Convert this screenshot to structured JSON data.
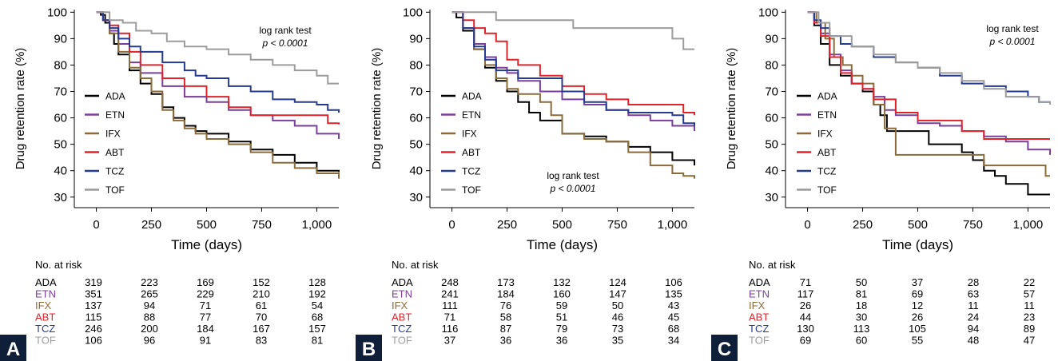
{
  "colors": {
    "ADA": "#000000",
    "ETN": "#7a3e9d",
    "IFX": "#8b6b3a",
    "ABT": "#e0232b",
    "TCZ": "#263b8f",
    "TOF": "#9c9c9c",
    "badge_bg": "#0f1f3a",
    "badge_fg": "#ffffff"
  },
  "chart_data": [
    {
      "type": "line",
      "panel": "A",
      "ylabel": "Drug retention rate (%)",
      "xlabel": "Time (days)",
      "xlim": [
        -100,
        1100
      ],
      "ylim": [
        26,
        101
      ],
      "x_ticks": [
        0,
        250,
        500,
        750,
        1000
      ],
      "x_tick_labels": [
        "0",
        "250",
        "500",
        "750",
        "1,000"
      ],
      "y_ticks": [
        30,
        40,
        50,
        60,
        70,
        80,
        90,
        100
      ],
      "y_tick_labels": [
        "30",
        "40",
        "50",
        "60",
        "70",
        "80",
        "90",
        "100"
      ],
      "annotation": {
        "line1": "log rank test",
        "line2": "p < 0.0001"
      },
      "legend": [
        "ADA",
        "ETN",
        "IFX",
        "ABT",
        "TCZ",
        "TOF"
      ],
      "series": [
        {
          "name": "ADA",
          "x": [
            0,
            20,
            40,
            60,
            80,
            100,
            150,
            200,
            250,
            300,
            350,
            400,
            450,
            500,
            600,
            700,
            800,
            900,
            1000,
            1100
          ],
          "y": [
            100,
            99,
            96,
            92,
            88,
            84,
            78,
            73,
            69,
            64,
            60,
            57,
            55,
            54,
            51,
            48,
            46,
            43,
            40,
            39.5
          ]
        },
        {
          "name": "ETN",
          "x": [
            0,
            30,
            60,
            100,
            150,
            200,
            300,
            400,
            500,
            600,
            700,
            800,
            900,
            1000,
            1100
          ],
          "y": [
            100,
            97,
            93,
            88,
            81,
            77,
            72,
            68,
            66,
            63,
            61,
            59,
            57,
            54,
            52
          ]
        },
        {
          "name": "IFX",
          "x": [
            0,
            30,
            60,
            100,
            150,
            200,
            250,
            300,
            350,
            400,
            450,
            500,
            600,
            700,
            800,
            900,
            1000,
            1100
          ],
          "y": [
            100,
            97,
            92,
            85,
            79,
            75,
            70,
            63,
            59,
            56,
            54,
            52,
            50,
            47,
            43,
            41,
            39,
            37
          ]
        },
        {
          "name": "ABT",
          "x": [
            0,
            30,
            60,
            100,
            150,
            200,
            300,
            400,
            500,
            600,
            700,
            800,
            1000,
            1050,
            1100
          ],
          "y": [
            100,
            97,
            95,
            92,
            85,
            80,
            75,
            72,
            68,
            64,
            61,
            61,
            61,
            58,
            57.5
          ]
        },
        {
          "name": "TCZ",
          "x": [
            0,
            30,
            60,
            100,
            150,
            200,
            300,
            350,
            400,
            450,
            500,
            600,
            700,
            800,
            900,
            1000,
            1050,
            1100
          ],
          "y": [
            100,
            97,
            94,
            90,
            87,
            85,
            81,
            81,
            78,
            76,
            75,
            72,
            70,
            67,
            66,
            65,
            63,
            62
          ]
        },
        {
          "name": "TOF",
          "x": [
            0,
            60,
            120,
            180,
            250,
            320,
            400,
            500,
            600,
            700,
            800,
            900,
            1000,
            1050,
            1100
          ],
          "y": [
            100,
            97,
            96,
            93,
            92,
            89,
            87,
            86,
            84,
            82,
            80,
            78,
            76,
            73,
            73
          ]
        }
      ],
      "risk_table": {
        "title": "No. at risk",
        "rows": [
          {
            "name": "ADA",
            "values": [
              "319",
              "223",
              "169",
              "152",
              "128"
            ]
          },
          {
            "name": "ETN",
            "values": [
              "351",
              "265",
              "229",
              "210",
              "192"
            ]
          },
          {
            "name": "IFX",
            "values": [
              "137",
              "94",
              "71",
              "61",
              "54"
            ]
          },
          {
            "name": "ABT",
            "values": [
              "115",
              "88",
              "77",
              "70",
              "68"
            ]
          },
          {
            "name": "TCZ",
            "values": [
              "246",
              "200",
              "184",
              "167",
              "157"
            ]
          },
          {
            "name": "TOF",
            "values": [
              "106",
              "96",
              "91",
              "83",
              "81"
            ]
          }
        ]
      }
    },
    {
      "type": "line",
      "panel": "B",
      "ylabel": "Drug retention rate (%)",
      "xlabel": "Time (days)",
      "xlim": [
        -100,
        1100
      ],
      "ylim": [
        26,
        101
      ],
      "x_ticks": [
        0,
        250,
        500,
        750,
        1000
      ],
      "x_tick_labels": [
        "0",
        "250",
        "500",
        "750",
        "1,000"
      ],
      "y_ticks": [
        30,
        40,
        50,
        60,
        70,
        80,
        90,
        100
      ],
      "y_tick_labels": [
        "30",
        "40",
        "50",
        "60",
        "70",
        "80",
        "90",
        "100"
      ],
      "annotation": {
        "line1": "log rank test",
        "line2": "p < 0.0001"
      },
      "legend": [
        "ADA",
        "ETN",
        "IFX",
        "ABT",
        "TCZ",
        "TOF"
      ],
      "series": [
        {
          "name": "ADA",
          "x": [
            0,
            20,
            50,
            100,
            150,
            200,
            250,
            300,
            350,
            400,
            500,
            600,
            700,
            800,
            900,
            1000,
            1100
          ],
          "y": [
            100,
            98,
            93,
            86,
            79,
            74,
            70,
            66,
            62,
            59,
            54,
            53,
            51,
            49,
            47,
            44,
            42
          ]
        },
        {
          "name": "ETN",
          "x": [
            0,
            50,
            100,
            150,
            200,
            250,
            300,
            400,
            500,
            600,
            700,
            800,
            900,
            1000,
            1100
          ],
          "y": [
            100,
            94,
            88,
            83,
            79,
            77,
            74,
            70,
            67,
            65,
            63,
            61,
            59,
            57,
            55
          ]
        },
        {
          "name": "IFX",
          "x": [
            0,
            50,
            100,
            150,
            200,
            250,
            300,
            400,
            450,
            500,
            600,
            700,
            800,
            900,
            1000,
            1050,
            1100
          ],
          "y": [
            100,
            94,
            86,
            80,
            75,
            71,
            69,
            66,
            61,
            54,
            52,
            51,
            47,
            42,
            39,
            38,
            37
          ]
        },
        {
          "name": "ABT",
          "x": [
            0,
            50,
            100,
            150,
            200,
            250,
            300,
            400,
            500,
            600,
            700,
            800,
            900,
            1000,
            1050,
            1100
          ],
          "y": [
            100,
            97,
            94,
            92,
            89,
            82,
            80,
            76,
            72,
            69,
            67,
            65,
            65,
            65,
            62,
            61
          ]
        },
        {
          "name": "TCZ",
          "x": [
            0,
            50,
            100,
            150,
            200,
            300,
            400,
            500,
            600,
            700,
            800,
            900,
            1000,
            1050,
            1100
          ],
          "y": [
            100,
            94,
            87,
            82,
            78,
            75,
            75,
            70,
            66,
            63,
            62,
            62,
            61,
            58,
            57
          ]
        },
        {
          "name": "TOF",
          "x": [
            0,
            200,
            400,
            500,
            550,
            700,
            800,
            900,
            1000,
            1050,
            1100
          ],
          "y": [
            100,
            97,
            97,
            97,
            94,
            94,
            94,
            94,
            90,
            86,
            86
          ]
        }
      ],
      "risk_table": {
        "title": "No. at risk",
        "rows": [
          {
            "name": "ADA",
            "values": [
              "248",
              "173",
              "132",
              "124",
              "106"
            ]
          },
          {
            "name": "ETN",
            "values": [
              "241",
              "184",
              "160",
              "147",
              "135"
            ]
          },
          {
            "name": "IFX",
            "values": [
              "111",
              "76",
              "59",
              "50",
              "43"
            ]
          },
          {
            "name": "ABT",
            "values": [
              "71",
              "58",
              "51",
              "46",
              "45"
            ]
          },
          {
            "name": "TCZ",
            "values": [
              "116",
              "87",
              "79",
              "73",
              "68"
            ]
          },
          {
            "name": "TOF",
            "values": [
              "37",
              "36",
              "36",
              "35",
              "34"
            ]
          }
        ]
      }
    },
    {
      "type": "line",
      "panel": "C",
      "ylabel": "Drug retention rate (%)",
      "xlabel": "Time (days)",
      "xlim": [
        -100,
        1100
      ],
      "ylim": [
        26,
        101
      ],
      "x_ticks": [
        0,
        250,
        500,
        750,
        1000
      ],
      "x_tick_labels": [
        "0",
        "250",
        "500",
        "750",
        "1,000"
      ],
      "y_ticks": [
        30,
        40,
        50,
        60,
        70,
        80,
        90,
        100
      ],
      "y_tick_labels": [
        "30",
        "40",
        "50",
        "60",
        "70",
        "80",
        "90",
        "100"
      ],
      "annotation": {
        "line1": "log rank test",
        "line2": "p < 0.0001"
      },
      "legend": [
        "ADA",
        "ETN",
        "IFX",
        "ABT",
        "TCZ",
        "TOF"
      ],
      "series": [
        {
          "name": "ADA",
          "x": [
            0,
            30,
            60,
            100,
            150,
            200,
            250,
            300,
            330,
            360,
            450,
            550,
            700,
            750,
            800,
            850,
            900,
            1000,
            1100
          ],
          "y": [
            100,
            95,
            88,
            80,
            76,
            73,
            70,
            65,
            61,
            55,
            55,
            50,
            47,
            44,
            40,
            38,
            35,
            31,
            31
          ]
        },
        {
          "name": "ETN",
          "x": [
            0,
            30,
            60,
            100,
            150,
            200,
            250,
            300,
            350,
            400,
            500,
            600,
            700,
            800,
            900,
            1000,
            1100
          ],
          "y": [
            100,
            96,
            92,
            84,
            78,
            73,
            71,
            68,
            63,
            61,
            58,
            57,
            55,
            53,
            51,
            48,
            46
          ]
        },
        {
          "name": "IFX",
          "x": [
            0,
            40,
            80,
            120,
            160,
            200,
            250,
            300,
            350,
            400,
            500,
            600,
            700,
            800,
            1000,
            1080,
            1100
          ],
          "y": [
            100,
            96,
            90,
            83,
            80,
            76,
            73,
            65,
            56,
            46,
            46,
            46,
            46,
            42,
            42,
            38,
            38
          ]
        },
        {
          "name": "ABT",
          "x": [
            0,
            30,
            60,
            100,
            150,
            200,
            250,
            300,
            400,
            500,
            600,
            700,
            800,
            900,
            1000,
            1100
          ],
          "y": [
            100,
            96,
            91,
            83,
            77,
            73,
            71,
            67,
            62,
            59,
            59,
            55,
            52,
            52,
            52,
            52
          ]
        },
        {
          "name": "TCZ",
          "x": [
            0,
            30,
            60,
            100,
            150,
            200,
            300,
            400,
            500,
            600,
            700,
            800,
            900,
            1000,
            1050,
            1100
          ],
          "y": [
            100,
            97,
            94,
            91,
            88,
            87,
            83,
            81,
            79,
            76,
            73,
            72,
            70,
            68,
            66,
            65
          ]
        },
        {
          "name": "TOF",
          "x": [
            0,
            50,
            100,
            200,
            300,
            400,
            500,
            600,
            700,
            800,
            900,
            1000,
            1050,
            1100
          ],
          "y": [
            100,
            96,
            91,
            87,
            84,
            81,
            79,
            77,
            74,
            71,
            68,
            68,
            66,
            65
          ]
        }
      ],
      "risk_table": {
        "title": "No. at risk",
        "rows": [
          {
            "name": "ADA",
            "values": [
              "71",
              "50",
              "37",
              "28",
              "22"
            ]
          },
          {
            "name": "ETN",
            "values": [
              "117",
              "81",
              "69",
              "63",
              "57"
            ]
          },
          {
            "name": "IFX",
            "values": [
              "26",
              "18",
              "12",
              "11",
              "11"
            ]
          },
          {
            "name": "ABT",
            "values": [
              "44",
              "30",
              "26",
              "24",
              "23"
            ]
          },
          {
            "name": "TCZ",
            "values": [
              "130",
              "113",
              "105",
              "94",
              "89"
            ]
          },
          {
            "name": "TOF",
            "values": [
              "69",
              "60",
              "55",
              "48",
              "47"
            ]
          }
        ]
      }
    }
  ]
}
